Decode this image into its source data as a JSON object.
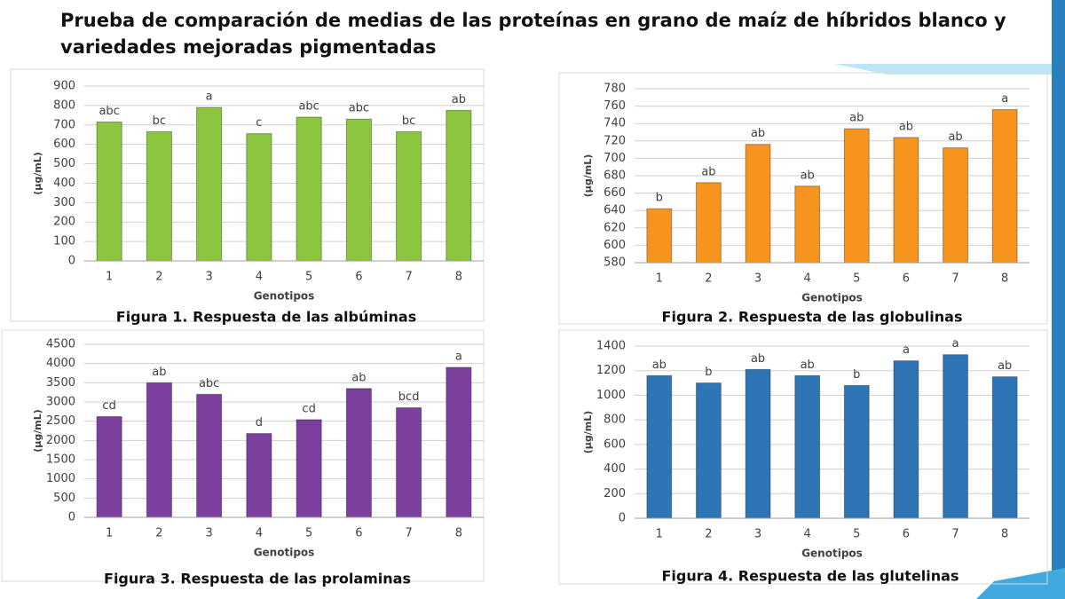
{
  "title": "Prueba de comparación de medias de las proteínas en grano de maíz de híbridos blanco y variedades mejoradas pigmentadas",
  "chart_data": [
    {
      "type": "bar",
      "caption": "Figura 1. Respuesta de las albúminas",
      "xlabel": "Genotipos",
      "ylabel": "(µg/mL)",
      "categories": [
        "1",
        "2",
        "3",
        "4",
        "5",
        "6",
        "7",
        "8"
      ],
      "values": [
        715,
        665,
        790,
        655,
        740,
        730,
        665,
        775
      ],
      "letters": [
        "abc",
        "bc",
        "a",
        "c",
        "abc",
        "abc",
        "bc",
        "ab"
      ],
      "color": "#8cc63f",
      "ylim": [
        0,
        900
      ],
      "yticks": [
        0,
        100,
        200,
        300,
        400,
        500,
        600,
        700,
        800,
        900
      ],
      "grid": true
    },
    {
      "type": "bar",
      "caption": "Figura 2. Respuesta de las globulinas",
      "xlabel": "Genotipos",
      "ylabel": "(µg/mL)",
      "categories": [
        "1",
        "2",
        "3",
        "4",
        "5",
        "6",
        "7",
        "8"
      ],
      "values": [
        642,
        672,
        716,
        668,
        734,
        724,
        712,
        756
      ],
      "letters": [
        "b",
        "ab",
        "ab",
        "ab",
        "ab",
        "ab",
        "ab",
        "a"
      ],
      "color": "#f7941d",
      "ylim": [
        580,
        780
      ],
      "yticks": [
        580,
        600,
        620,
        640,
        660,
        680,
        700,
        720,
        740,
        760,
        780
      ],
      "grid": true
    },
    {
      "type": "bar",
      "caption": "Figura 3. Respuesta de las prolaminas",
      "xlabel": "Genotipos",
      "ylabel": "(µg/mL)",
      "categories": [
        "1",
        "2",
        "3",
        "4",
        "5",
        "6",
        "7",
        "8"
      ],
      "values": [
        2620,
        3500,
        3200,
        2180,
        2540,
        3350,
        2850,
        3900
      ],
      "letters": [
        "cd",
        "ab",
        "abc",
        "d",
        "cd",
        "ab",
        "bcd",
        "a"
      ],
      "color": "#7b3f9e",
      "ylim": [
        0,
        4500
      ],
      "yticks": [
        0,
        500,
        1000,
        1500,
        2000,
        2500,
        3000,
        3500,
        4000,
        4500
      ],
      "grid": true
    },
    {
      "type": "bar",
      "caption": "Figura 4. Respuesta de las glutelinas",
      "xlabel": "Genotipos",
      "ylabel": "(µg/mL)",
      "categories": [
        "1",
        "2",
        "3",
        "4",
        "5",
        "6",
        "7",
        "8"
      ],
      "values": [
        1160,
        1100,
        1210,
        1160,
        1080,
        1280,
        1330,
        1150
      ],
      "letters": [
        "ab",
        "b",
        "ab",
        "ab",
        "b",
        "a",
        "a",
        "ab"
      ],
      "color": "#2e75b6",
      "ylim": [
        0,
        1400
      ],
      "yticks": [
        0,
        200,
        400,
        600,
        800,
        1000,
        1200,
        1400
      ],
      "grid": true
    }
  ]
}
